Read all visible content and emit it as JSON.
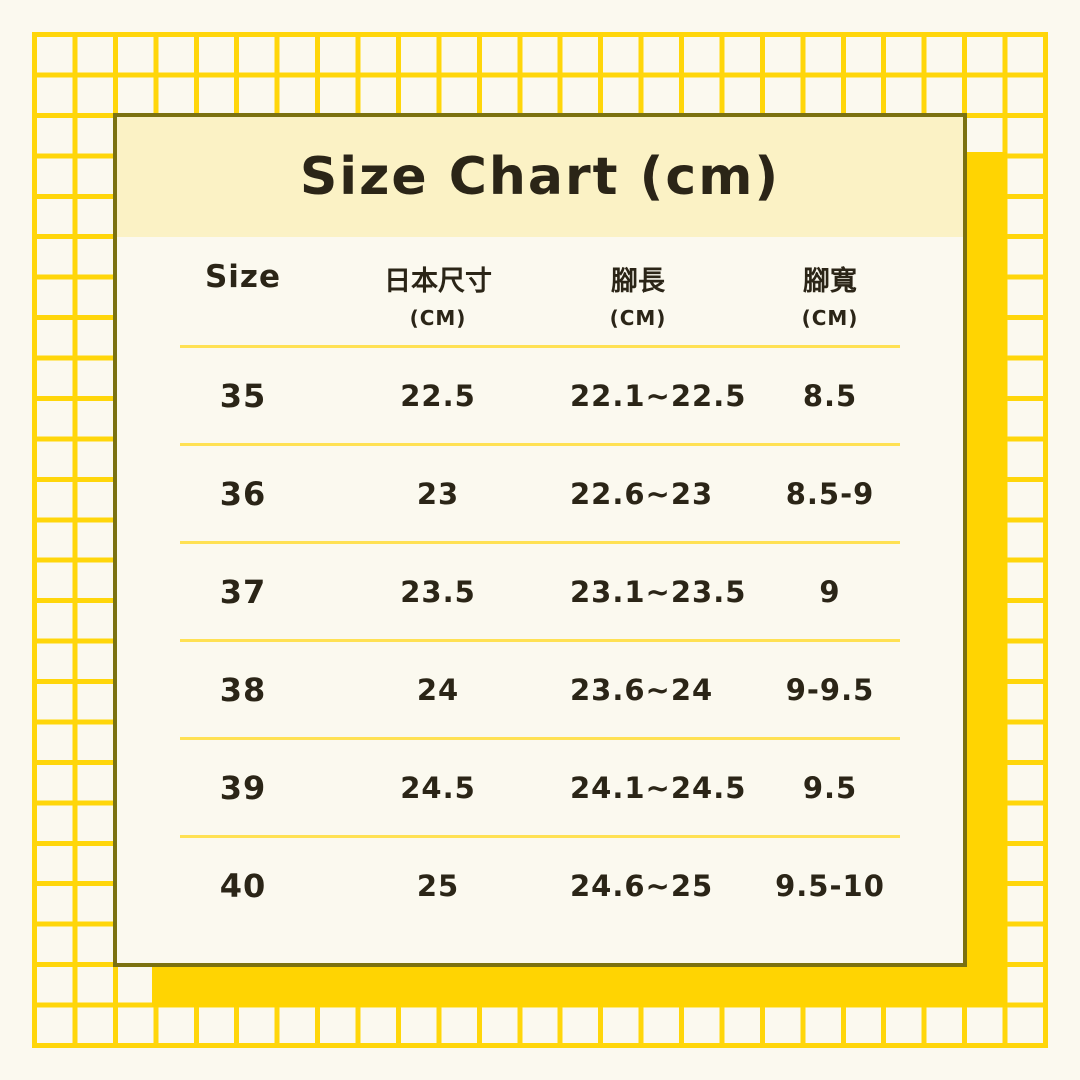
{
  "chart_data": {
    "type": "table",
    "title": "Size Chart (cm)",
    "columns": [
      {
        "label": "Size",
        "unit": ""
      },
      {
        "label": "日本尺寸",
        "unit": "(CM)"
      },
      {
        "label": "腳長",
        "unit": "(CM)"
      },
      {
        "label": "腳寬",
        "unit": "(CM)"
      }
    ],
    "rows": [
      {
        "size": "35",
        "japan_size": "22.5",
        "foot_length": "22.1~22.5",
        "foot_width": "8.5"
      },
      {
        "size": "36",
        "japan_size": "23",
        "foot_length": "22.6~23",
        "foot_width": "8.5-9"
      },
      {
        "size": "37",
        "japan_size": "23.5",
        "foot_length": "23.1~23.5",
        "foot_width": "9"
      },
      {
        "size": "38",
        "japan_size": "24",
        "foot_length": "23.6~24",
        "foot_width": "9-9.5"
      },
      {
        "size": "39",
        "japan_size": "24.5",
        "foot_length": "24.1~24.5",
        "foot_width": "9.5"
      },
      {
        "size": "40",
        "japan_size": "25",
        "foot_length": "24.6~25",
        "foot_width": "9.5-10"
      }
    ]
  },
  "colors": {
    "background": "#FBF9EF",
    "grid_line": "#FFD60A",
    "accent_square": "#FFD402",
    "card_border": "#7B7110",
    "header_band": "#FBF2C5",
    "row_separator": "#FFE153",
    "text": "#2B2517"
  }
}
